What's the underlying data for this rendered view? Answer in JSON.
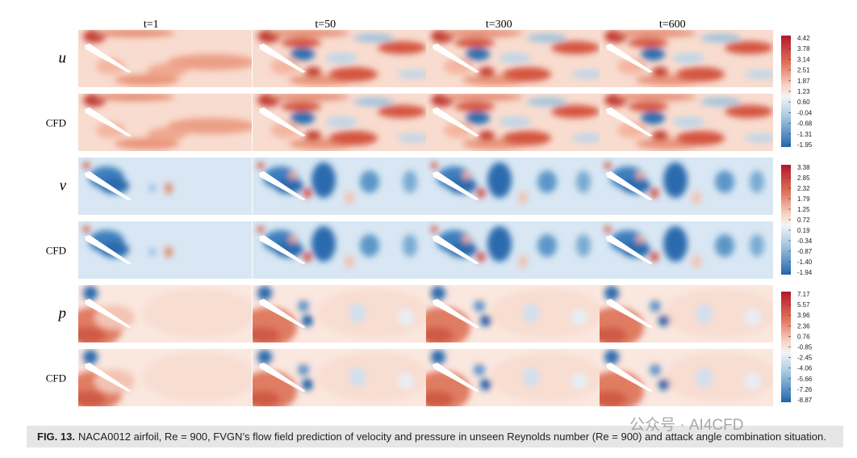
{
  "columns": [
    "t=1",
    "t=50",
    "t=300",
    "t=600"
  ],
  "rows": [
    "u",
    "CFD",
    "v",
    "CFD",
    "p",
    "CFD"
  ],
  "colorbars": [
    {
      "ticks": [
        "4.42",
        "3.78",
        "3.14",
        "2.51",
        "1.87",
        "1.23",
        "0.60",
        "-0.04",
        "-0.68",
        "-1.31",
        "-1.95"
      ]
    },
    {
      "ticks": [
        "3.38",
        "2.85",
        "2.32",
        "1.79",
        "1.25",
        "0.72",
        "0.19",
        "-0.34",
        "-0.87",
        "-1.40",
        "-1.94"
      ]
    },
    {
      "ticks": [
        "7.17",
        "5.57",
        "3.96",
        "2.36",
        "0.76",
        "-0.85",
        "-2.45",
        "-4.06",
        "-5.66",
        "-7.26",
        "-8.87"
      ]
    }
  ],
  "caption": {
    "label": "FIG. 13.",
    "text": "NACA0012 airfoil, Re = 900, FVGN’s flow field prediction of velocity and pressure in unseen Reynolds number (Re = 900) and attack angle combination situation."
  },
  "watermark": "公众号 · AI4CFD"
}
